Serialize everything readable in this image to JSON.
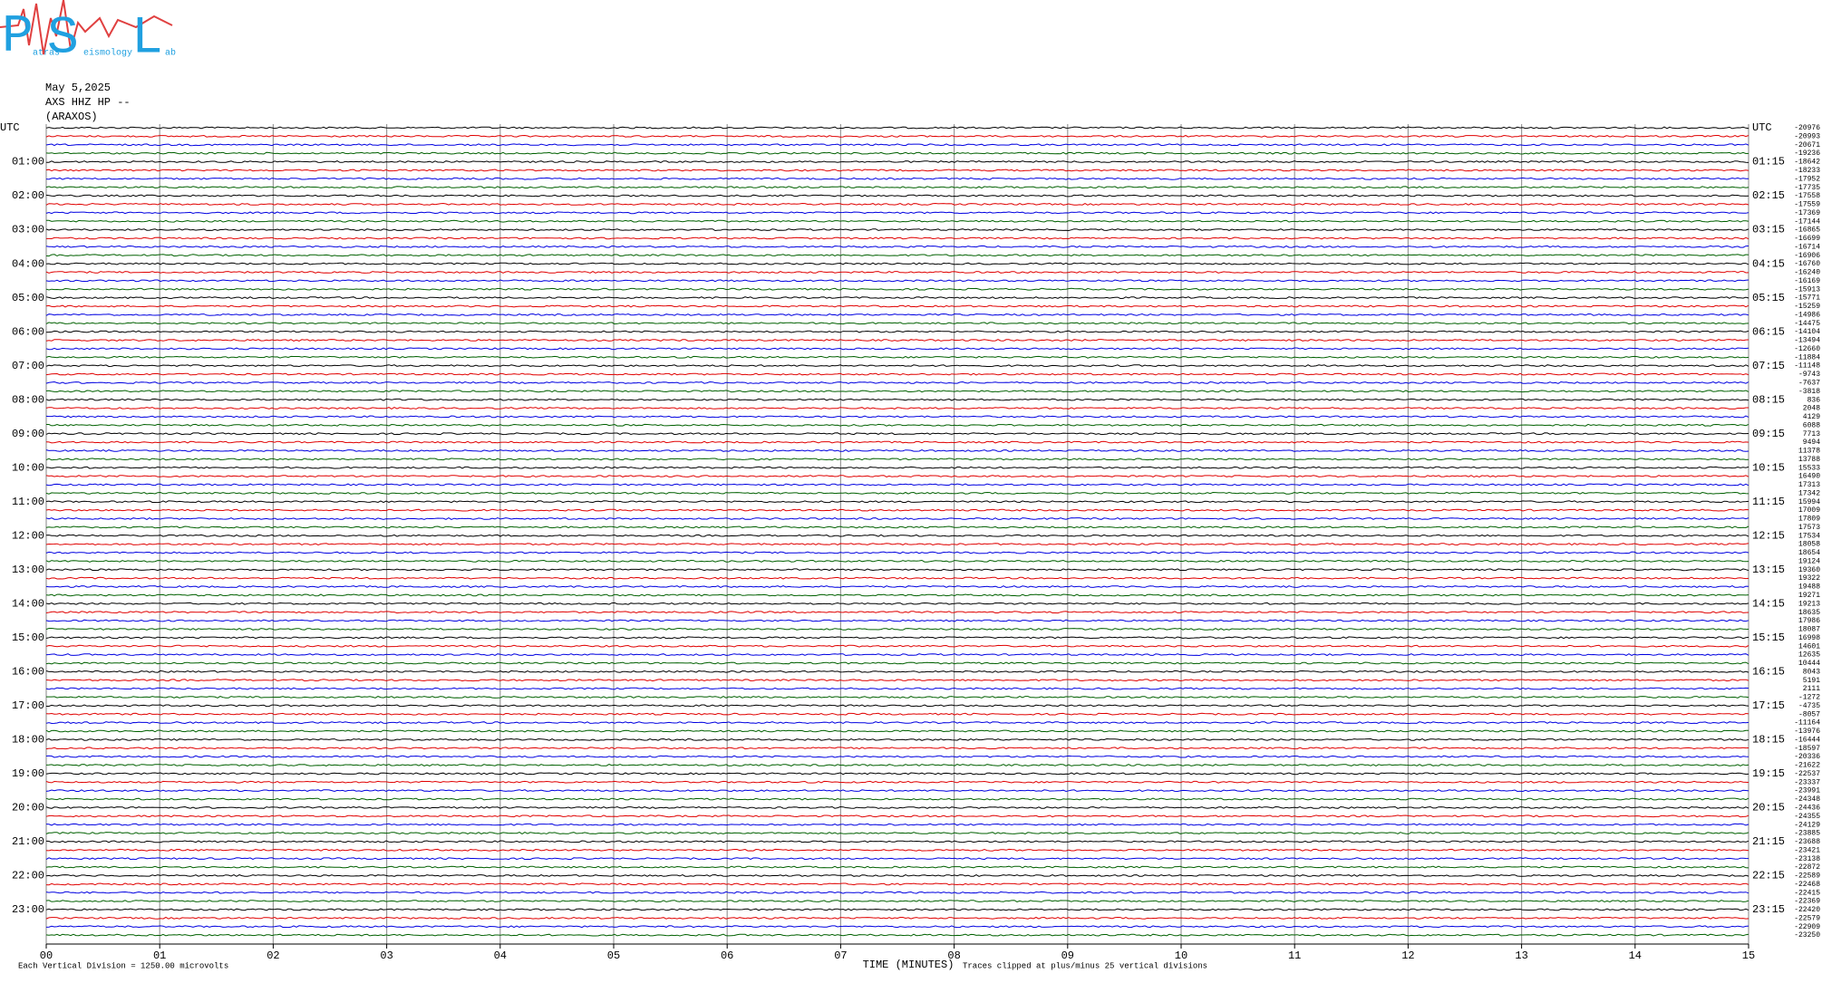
{
  "header": {
    "logo": {
      "letters": [
        "P",
        "S",
        "L"
      ],
      "small": [
        "atras",
        "eismology",
        "ab"
      ]
    }
  },
  "chart_data": {
    "type": "helicorder",
    "title_lines": [
      "May 5,2025",
      "AXS HHZ HP --",
      "(ARAXOS)"
    ],
    "x_label": "TIME (MINUTES)",
    "scale_note": "Each Vertical Division = 1250.00 microvolts",
    "clip_note": "Traces clipped at plus/minus 25 vertical divisions",
    "xlim": [
      0,
      15
    ],
    "xticks": [
      {
        "value": 0,
        "label": "00"
      },
      {
        "value": 1,
        "label": "01"
      },
      {
        "value": 2,
        "label": "02"
      },
      {
        "value": 3,
        "label": "03"
      },
      {
        "value": 4,
        "label": "04"
      },
      {
        "value": 5,
        "label": "05"
      },
      {
        "value": 6,
        "label": "06"
      },
      {
        "value": 7,
        "label": "07"
      },
      {
        "value": 8,
        "label": "08"
      },
      {
        "value": 9,
        "label": "09"
      },
      {
        "value": 10,
        "label": "10"
      },
      {
        "value": 11,
        "label": "11"
      },
      {
        "value": 12,
        "label": "12"
      },
      {
        "value": 13,
        "label": "13"
      },
      {
        "value": 14,
        "label": "14"
      },
      {
        "value": 15,
        "label": "15"
      }
    ],
    "grid": true,
    "trace_colors": [
      "#000000",
      "#e00000",
      "#0000e0",
      "#006000"
    ],
    "left_labels": [
      "UTC",
      null,
      null,
      null,
      "01:00",
      null,
      null,
      null,
      "02:00",
      null,
      null,
      null,
      "03:00",
      null,
      null,
      null,
      "04:00",
      null,
      null,
      null,
      "05:00",
      null,
      null,
      null,
      "06:00",
      null,
      null,
      null,
      "07:00",
      null,
      null,
      null,
      "08:00",
      null,
      null,
      null,
      "09:00",
      null,
      null,
      null,
      "10:00",
      null,
      null,
      null,
      "11:00",
      null,
      null,
      null,
      "12:00",
      null,
      null,
      null,
      "13:00",
      null,
      null,
      null,
      "14:00",
      null,
      null,
      null,
      "15:00",
      null,
      null,
      null,
      "16:00",
      null,
      null,
      null,
      "17:00",
      null,
      null,
      null,
      "18:00",
      null,
      null,
      null,
      "19:00",
      null,
      null,
      null,
      "20:00",
      null,
      null,
      null,
      "21:00",
      null,
      null,
      null,
      "22:00",
      null,
      null,
      null,
      "23:00",
      null,
      null,
      null
    ],
    "right_labels": [
      "UTC",
      null,
      null,
      null,
      "01:15",
      null,
      null,
      null,
      "02:15",
      null,
      null,
      null,
      "03:15",
      null,
      null,
      null,
      "04:15",
      null,
      null,
      null,
      "05:15",
      null,
      null,
      null,
      "06:15",
      null,
      null,
      null,
      "07:15",
      null,
      null,
      null,
      "08:15",
      null,
      null,
      null,
      "09:15",
      null,
      null,
      null,
      "10:15",
      null,
      null,
      null,
      "11:15",
      null,
      null,
      null,
      "12:15",
      null,
      null,
      null,
      "13:15",
      null,
      null,
      null,
      "14:15",
      null,
      null,
      null,
      "15:15",
      null,
      null,
      null,
      "16:15",
      null,
      null,
      null,
      "17:15",
      null,
      null,
      null,
      "18:15",
      null,
      null,
      null,
      "19:15",
      null,
      null,
      null,
      "20:15",
      null,
      null,
      null,
      "21:15",
      null,
      null,
      null,
      "22:15",
      null,
      null,
      null,
      "23:15",
      null,
      null,
      null
    ],
    "offsets": [
      -20976,
      -20993,
      -20671,
      -19236,
      -18642,
      -18233,
      -17952,
      -17735,
      -17558,
      -17559,
      -17369,
      -17144,
      -16865,
      -16699,
      -16714,
      -16906,
      -16760,
      -16240,
      -16169,
      -15913,
      -15771,
      -15259,
      -14986,
      -14475,
      -14104,
      -13494,
      -12660,
      -11884,
      -11148,
      -9743,
      -7637,
      -3818,
      836,
      2048,
      4129,
      6088,
      7713,
      9494,
      11378,
      13788,
      15533,
      16490,
      17313,
      17342,
      15994,
      17009,
      17809,
      17573,
      17534,
      18058,
      18654,
      19124,
      19360,
      19322,
      19488,
      19271,
      19213,
      18635,
      17986,
      18087,
      16998,
      14601,
      12635,
      10444,
      8043,
      5191,
      2111,
      -1272,
      -4735,
      -8057,
      -11164,
      -13976,
      -16444,
      -18597,
      -20336,
      -21622,
      -22537,
      -23337,
      -23991,
      -24348,
      -24436,
      -24355,
      -24129,
      -23885,
      -23688,
      -23421,
      -23138,
      -22872,
      -22589,
      -22468,
      -22415,
      -22369,
      -22420,
      -22579,
      -22909,
      -23250
    ]
  }
}
